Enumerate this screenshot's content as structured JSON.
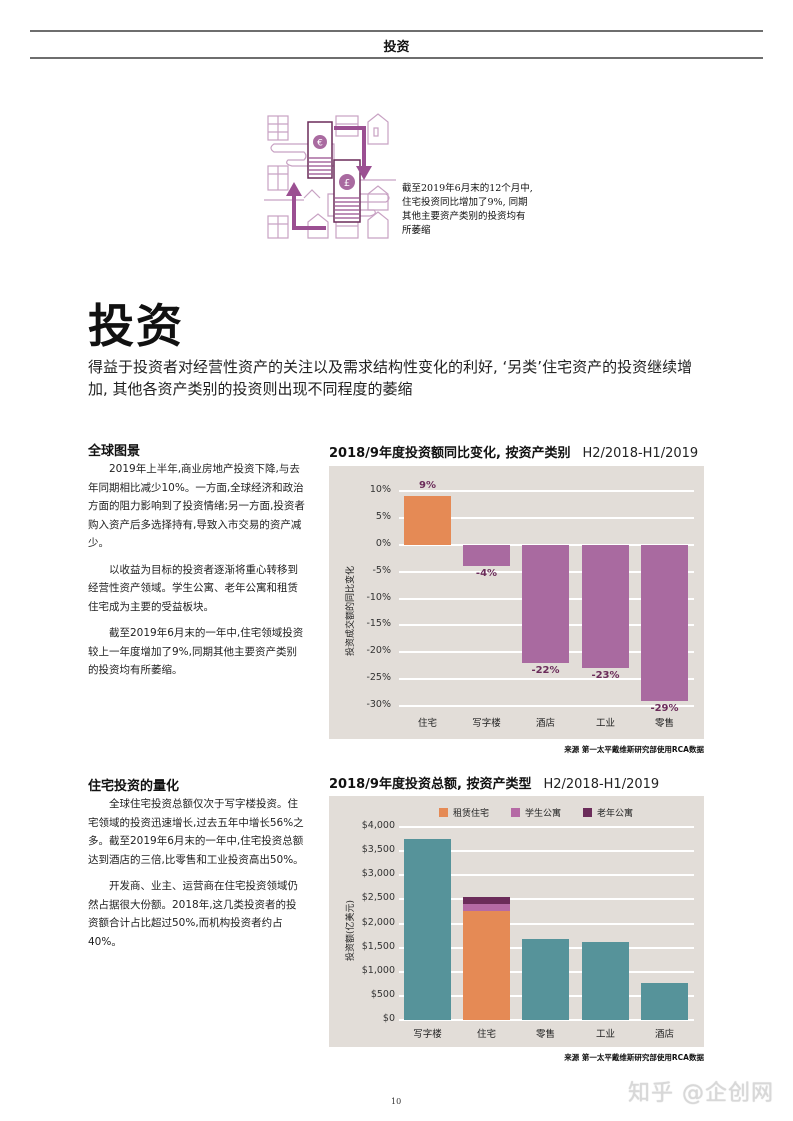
{
  "header": {
    "section_title": "投资"
  },
  "illustration": {
    "icon": "hands-exchanging-money-over-buildings",
    "currency_symbols": [
      "€",
      "£"
    ],
    "callout_lines": [
      "截至2019年6月末的12个月中,",
      "住宅投资同比增加了9%, 同期",
      "其他主要资产类别的投资均有",
      "所萎缩"
    ]
  },
  "article": {
    "title": "投资",
    "lead": "得益于投资者对经营性资产的关注以及需求结构性变化的利好, ‘另类’住宅资产的投资继续增加, 其他各资产类别的投资则出现不同程度的萎缩",
    "sections": [
      {
        "heading": "全球图景",
        "paragraphs": [
          "2019年上半年,商业房地产投资下降,与去年同期相比减少10%。一方面,全球经济和政治方面的阻力影响到了投资情绪;另一方面,投资者购入资产后多选择持有,导致入市交易的资产减少。",
          "以收益为目标的投资者逐渐将重心转移到经营性资产领域。学生公寓、老年公寓和租赁住宅成为主要的受益板块。",
          "截至2019年6月末的一年中,住宅领域投资较上一年度增加了9%,同期其他主要资产类别的投资均有所萎缩。"
        ]
      },
      {
        "heading": "住宅投资的量化",
        "paragraphs": [
          "全球住宅投资总额仅次于写字楼投资。住宅领域的投资迅速增长,过去五年中增长56%之多。截至2019年6月末的一年中,住宅投资总额达到酒店的三倍,比零售和工业投资高出50%。",
          "开发商、业主、运营商在住宅投资领域仍然占据很大份额。2018年,这几类投资者的投资额合计占比超过50%,而机构投资者约占40%。"
        ]
      }
    ]
  },
  "charts": {
    "yoy": {
      "title": "2018/9年度投资额同比变化, 按资产类别",
      "period": "H2/2018-H1/2019",
      "ylabel": "投资成交额的同比变化",
      "source": "来源 第一太平戴维斯研究部使用RCA数据"
    },
    "volume": {
      "title": "2018/9年度投资总额, 按资产类型",
      "period": "H2/2018-H1/2019",
      "ylabel": "投资额(亿美元)",
      "source": "来源 第一太平戴维斯研究部使用RCA数据",
      "legend": [
        "租赁住宅",
        "学生公寓",
        "老年公寓"
      ]
    }
  },
  "chart_data": [
    {
      "type": "bar",
      "title": "2018/9年度投资额同比变化, 按资产类别",
      "subtitle": "H2/2018-H1/2019",
      "xlabel": "",
      "ylabel": "投资成交额的同比变化",
      "categories": [
        "住宅",
        "写字楼",
        "酒店",
        "工业",
        "零售"
      ],
      "values": [
        9,
        -4,
        -22,
        -23,
        -29
      ],
      "value_labels": [
        "9%",
        "-4%",
        "-22%",
        "-23%",
        "-29%"
      ],
      "colors": [
        "#e58a55",
        "#a96aa0",
        "#a96aa0",
        "#a96aa0",
        "#a96aa0"
      ],
      "yticks": [
        "10%",
        "5%",
        "0%",
        "-5%",
        "-10%",
        "-15%",
        "-20%",
        "-25%",
        "-30%"
      ],
      "ylim": [
        -30,
        10
      ],
      "grid": true,
      "source": "来源 第一太平戴维斯研究部使用RCA数据"
    },
    {
      "type": "bar",
      "stacked": true,
      "title": "2018/9年度投资总额, 按资产类型",
      "subtitle": "H2/2018-H1/2019",
      "xlabel": "",
      "ylabel": "投资额(亿美元)",
      "categories": [
        "写字楼",
        "住宅",
        "零售",
        "工业",
        "酒店"
      ],
      "totals": [
        3750,
        2550,
        1670,
        1620,
        760
      ],
      "series": [
        {
          "name": "总额",
          "color": "#56939a",
          "values": [
            3750,
            0,
            1670,
            1620,
            760
          ]
        },
        {
          "name": "租赁住宅",
          "color": "#e58a55",
          "values": [
            0,
            2250,
            0,
            0,
            0
          ]
        },
        {
          "name": "学生公寓",
          "color": "#b56aa5",
          "values": [
            0,
            150,
            0,
            0,
            0
          ]
        },
        {
          "name": "老年公寓",
          "color": "#6b2c5a",
          "values": [
            0,
            150,
            0,
            0,
            0
          ]
        }
      ],
      "legend": [
        "租赁住宅",
        "学生公寓",
        "老年公寓"
      ],
      "legend_position": "top",
      "yticks": [
        "$4,000",
        "$3,500",
        "$3,000",
        "$2,500",
        "$2,000",
        "$1,500",
        "$1,000",
        "$500",
        "$0"
      ],
      "ylim": [
        0,
        4000
      ],
      "grid": true,
      "source": "来源 第一太平戴维斯研究部使用RCA数据"
    }
  ],
  "footer": {
    "page_number": "10",
    "watermark": "知乎 @企创网"
  }
}
